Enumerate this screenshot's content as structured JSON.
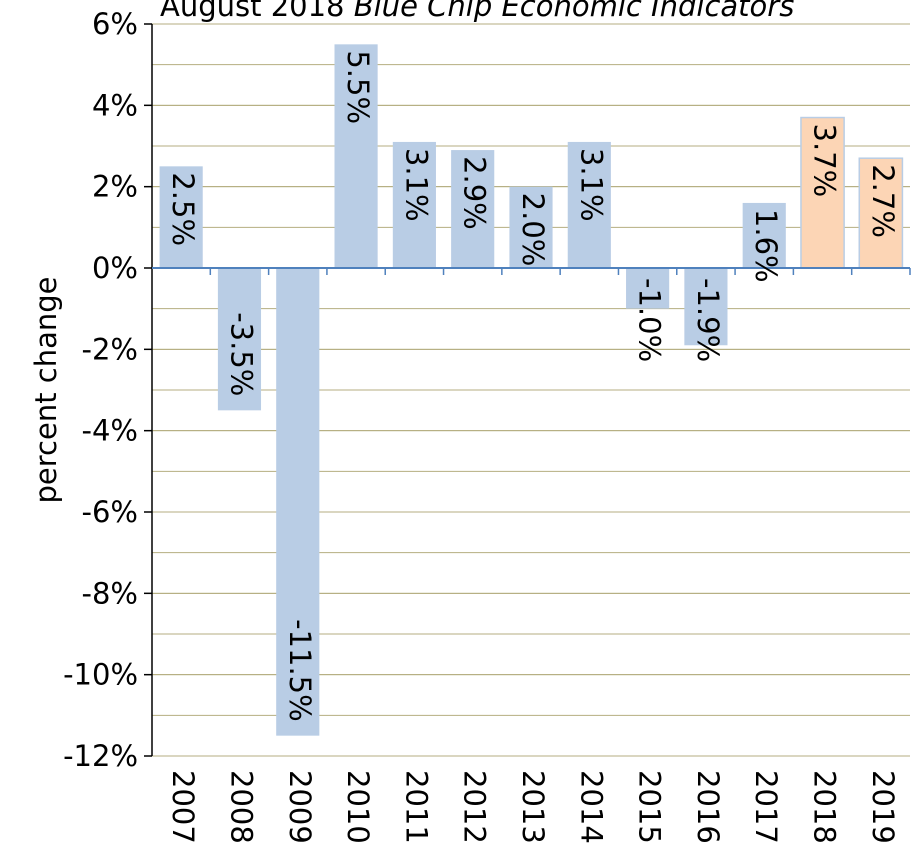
{
  "chart_data": {
    "type": "bar",
    "title": {
      "text": "August 2018",
      "emphasis": "Blue Chip Economic Indicators"
    },
    "y_label": "percent change",
    "categories": [
      "2007",
      "2008",
      "2009",
      "2010",
      "2011",
      "2012",
      "2013",
      "2014",
      "2015",
      "2016",
      "2017",
      "2018",
      "2019"
    ],
    "values": [
      2.5,
      -3.5,
      -11.5,
      5.5,
      3.1,
      2.9,
      2.0,
      3.1,
      -1.0,
      -1.9,
      1.6,
      3.7,
      2.7
    ],
    "value_labels": [
      "2.5%",
      "-3.5%",
      "-11.5%",
      "5.5%",
      "3.1%",
      "2.9%",
      "2.0%",
      "3.1%",
      "-1.0%",
      "-1.9%",
      "1.6%",
      "3.7%",
      "2.7%"
    ],
    "colors": [
      "#b9cde5",
      "#b9cde5",
      "#b9cde5",
      "#b9cde5",
      "#b9cde5",
      "#b9cde5",
      "#b9cde5",
      "#b9cde5",
      "#b9cde5",
      "#b9cde5",
      "#b9cde5",
      "#fcd5b5",
      "#fcd5b5"
    ],
    "ylim": [
      -12,
      6
    ],
    "yticks": [
      {
        "value": 6,
        "label": "6%"
      },
      {
        "value": 4,
        "label": "4%"
      },
      {
        "value": 2,
        "label": "2%"
      },
      {
        "value": 0,
        "label": "0%"
      },
      {
        "value": -2,
        "label": "-2%"
      },
      {
        "value": -4,
        "label": "-4%"
      },
      {
        "value": -6,
        "label": "-6%"
      },
      {
        "value": -8,
        "label": "-8%"
      },
      {
        "value": -10,
        "label": "-10%"
      },
      {
        "value": -12,
        "label": "-12%"
      }
    ],
    "ygrid": [
      6,
      5,
      4,
      3,
      2,
      1,
      -1,
      -2,
      -3,
      -4,
      -5,
      -6,
      -7,
      -8,
      -9,
      -10,
      -11
    ],
    "grid": true
  }
}
